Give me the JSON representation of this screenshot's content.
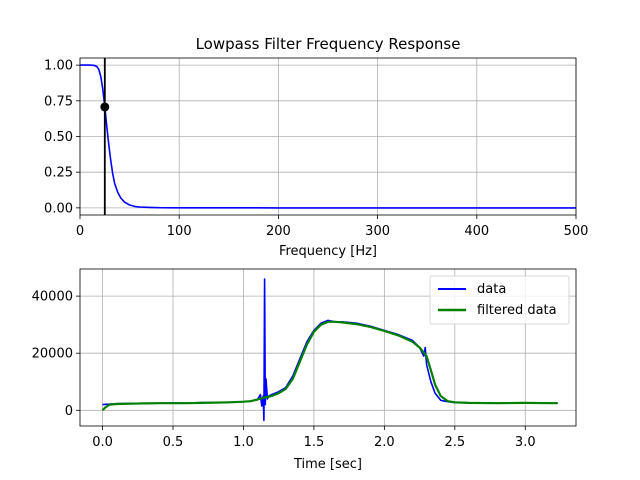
{
  "chart_data": [
    {
      "type": "line",
      "title": "Lowpass Filter Frequency Response",
      "xlabel": "Frequency [Hz]",
      "ylabel": "",
      "xlim": [
        0,
        500
      ],
      "ylim": [
        -0.05,
        1.05
      ],
      "xticks": [
        0,
        100,
        200,
        300,
        400,
        500
      ],
      "yticks": [
        0.0,
        0.25,
        0.5,
        0.75,
        1.0
      ],
      "ytick_labels": [
        "0.00",
        "0.25",
        "0.50",
        "0.75",
        "1.00"
      ],
      "grid": true,
      "series": [
        {
          "color": "#0000ff",
          "x": [
            0,
            5,
            10,
            13,
            15,
            17,
            19,
            21,
            23,
            25,
            27,
            29,
            31,
            33,
            35,
            38,
            41,
            45,
            50,
            55,
            60,
            70,
            80,
            100,
            150,
            200,
            300,
            400,
            500
          ],
          "y": [
            1.0,
            1.0,
            1.0,
            0.999,
            0.997,
            0.99,
            0.97,
            0.92,
            0.83,
            0.707,
            0.57,
            0.44,
            0.33,
            0.24,
            0.17,
            0.11,
            0.07,
            0.04,
            0.02,
            0.01,
            0.006,
            0.003,
            0.001,
            0.0005,
            0.0001,
            0.0,
            0.0,
            0.0,
            0.0
          ]
        }
      ],
      "cutoff": {
        "x": 25,
        "y": 0.707,
        "color": "#000000"
      }
    },
    {
      "type": "line",
      "title": "",
      "xlabel": "Time [sec]",
      "ylabel": "",
      "xlim": [
        -0.16,
        3.36
      ],
      "ylim": [
        -5500,
        49500
      ],
      "xticks": [
        0.0,
        0.5,
        1.0,
        1.5,
        2.0,
        2.5,
        3.0
      ],
      "xtick_labels": [
        "0.0",
        "0.5",
        "1.0",
        "1.5",
        "2.0",
        "2.5",
        "3.0"
      ],
      "yticks": [
        0,
        20000,
        40000
      ],
      "ytick_labels": [
        "0",
        "20000",
        "40000"
      ],
      "grid": true,
      "legend": {
        "position": "top-right"
      },
      "series": [
        {
          "name": "data",
          "color": "#0000ff",
          "x": [
            0.0,
            0.1,
            0.2,
            0.3,
            0.4,
            0.5,
            0.6,
            0.7,
            0.8,
            0.9,
            1.0,
            1.05,
            1.1,
            1.12,
            1.13,
            1.14,
            1.145,
            1.15,
            1.155,
            1.16,
            1.17,
            1.18,
            1.2,
            1.25,
            1.3,
            1.35,
            1.4,
            1.45,
            1.5,
            1.55,
            1.6,
            1.65,
            1.7,
            1.8,
            1.9,
            2.0,
            2.1,
            2.2,
            2.25,
            2.28,
            2.29,
            2.3,
            2.31,
            2.33,
            2.36,
            2.4,
            2.45,
            2.5,
            2.6,
            2.8,
            3.0,
            3.2,
            3.23
          ],
          "y": [
            2000,
            2300,
            2400,
            2400,
            2500,
            2600,
            2500,
            2700,
            2700,
            2800,
            3000,
            3200,
            3800,
            5500,
            1500,
            5000,
            -3500,
            46000,
            2000,
            11000,
            4000,
            5000,
            5500,
            6500,
            8000,
            12000,
            18000,
            24000,
            28000,
            30500,
            31500,
            31000,
            31000,
            30500,
            29500,
            28000,
            26500,
            24500,
            22000,
            19000,
            22000,
            16000,
            14000,
            10000,
            6000,
            3500,
            3000,
            2700,
            2600,
            2500,
            2600,
            2500,
            2600
          ]
        },
        {
          "name": "filtered data",
          "color": "#008000",
          "x": [
            0.0,
            0.02,
            0.05,
            0.1,
            0.2,
            0.3,
            0.4,
            0.5,
            0.6,
            0.7,
            0.8,
            0.9,
            1.0,
            1.05,
            1.1,
            1.15,
            1.2,
            1.25,
            1.3,
            1.35,
            1.4,
            1.45,
            1.5,
            1.55,
            1.6,
            1.65,
            1.7,
            1.8,
            1.9,
            2.0,
            2.1,
            2.2,
            2.25,
            2.3,
            2.33,
            2.36,
            2.4,
            2.45,
            2.5,
            2.6,
            2.8,
            3.0,
            3.2,
            3.23
          ],
          "y": [
            0,
            1000,
            2000,
            2200,
            2300,
            2400,
            2500,
            2500,
            2500,
            2600,
            2700,
            2800,
            3000,
            3200,
            3800,
            4500,
            5000,
            6000,
            7500,
            11000,
            17000,
            23000,
            27500,
            30000,
            31000,
            31000,
            30800,
            30200,
            29200,
            27800,
            26200,
            24000,
            22000,
            19000,
            14000,
            9000,
            5000,
            3200,
            2800,
            2600,
            2500,
            2600,
            2500,
            2500
          ]
        }
      ]
    }
  ]
}
